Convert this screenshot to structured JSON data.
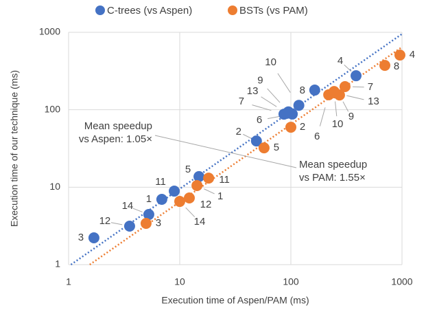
{
  "chart_data": {
    "type": "scatter",
    "xlabel": "Execution time of Aspen/PAM (ms)",
    "ylabel": "Execution time of our technique (ms)",
    "log_x": true,
    "log_y": true,
    "grid": true,
    "legend": "top",
    "xlim": [
      1,
      1000
    ],
    "ylim": [
      1,
      1000
    ],
    "xticks": [
      1,
      10,
      100,
      1000
    ],
    "yticks": [
      1,
      10,
      100,
      1000
    ],
    "series": [
      {
        "name": "C-trees (vs Aspen)",
        "color": "#4472c4",
        "labels": [
          "1",
          "2",
          "3",
          "4",
          "5",
          "6",
          "7",
          "8",
          "9",
          "10",
          "11",
          "12",
          "13",
          "14"
        ],
        "x": [
          6.9,
          49,
          1.69,
          386,
          14.9,
          103,
          86.7,
          164,
          95,
          118,
          8.93,
          3.54,
          92,
          5.27
        ],
        "values": [
          6.97,
          39.5,
          2.22,
          275,
          13.7,
          88,
          87.7,
          179.5,
          94,
          114,
          8.9,
          3.14,
          90,
          4.44
        ]
      },
      {
        "name": "BSTs (vs PAM)",
        "color": "#ed7d31",
        "labels": [
          "1",
          "2",
          "3",
          "4",
          "5",
          "6",
          "7",
          "8",
          "9",
          "10",
          "11",
          "12",
          "13",
          "14"
        ],
        "x": [
          14.3,
          100,
          4.98,
          958,
          57.4,
          219,
          307,
          701,
          274,
          245,
          18.2,
          12.2,
          250,
          10
        ],
        "values": [
          10.5,
          59.5,
          3.41,
          508,
          32.2,
          156,
          199,
          374,
          155,
          172,
          13.1,
          7.26,
          165,
          6.55
        ]
      }
    ],
    "annotations": [
      {
        "lines": [
          "Mean speedup",
          "vs Aspen: 1.05×"
        ],
        "value": 1.05
      },
      {
        "lines": [
          "Mean speedup",
          "vs PAM: 1.55×"
        ],
        "value": 1.55
      }
    ]
  }
}
